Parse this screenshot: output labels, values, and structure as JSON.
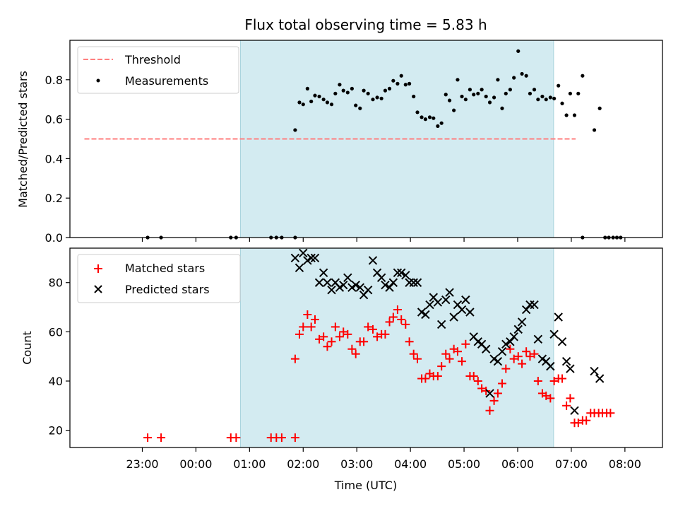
{
  "title": "Flux total observing time = 5.83 h",
  "colors": {
    "threshold": "#ff7f7f",
    "measurement": "#000000",
    "matched": "#ff0000",
    "predicted": "#000000",
    "span_fill": "#d3ebf1",
    "span_edge": "#a8d3dd"
  },
  "chart_data": [
    {
      "type": "scatter",
      "ylabel": "Matched/Predicted stars",
      "xlabel": "",
      "ylim": [
        0,
        1.0
      ],
      "yticks": [
        0.0,
        0.2,
        0.4,
        0.6,
        0.8
      ],
      "ytick_labels": [
        "0.0",
        "0.2",
        "0.4",
        "0.6",
        "0.8"
      ],
      "legend": {
        "placement": "upper-left",
        "threshold_label": "Threshold",
        "measurements_label": "Measurements"
      },
      "threshold": {
        "y": 0.5,
        "x_start": -0.08,
        "x_end": 9.08
      },
      "highlight_span": [
        2.83,
        8.67
      ],
      "x_axis": "hours after 22:00 UTC",
      "measurements": [
        [
          1.1,
          0.0
        ],
        [
          1.35,
          0.0
        ],
        [
          2.65,
          0.0
        ],
        [
          2.75,
          0.0
        ],
        [
          3.4,
          0.0
        ],
        [
          3.5,
          0.0
        ],
        [
          3.6,
          0.0
        ],
        [
          3.85,
          0.0
        ],
        [
          3.85,
          0.545
        ],
        [
          3.93,
          0.685
        ],
        [
          4.0,
          0.675
        ],
        [
          4.08,
          0.755
        ],
        [
          4.15,
          0.69
        ],
        [
          4.22,
          0.72
        ],
        [
          4.3,
          0.715
        ],
        [
          4.38,
          0.7
        ],
        [
          4.45,
          0.685
        ],
        [
          4.53,
          0.675
        ],
        [
          4.6,
          0.73
        ],
        [
          4.68,
          0.775
        ],
        [
          4.75,
          0.745
        ],
        [
          4.83,
          0.735
        ],
        [
          4.91,
          0.755
        ],
        [
          4.98,
          0.67
        ],
        [
          5.06,
          0.655
        ],
        [
          5.13,
          0.745
        ],
        [
          5.21,
          0.73
        ],
        [
          5.3,
          0.7
        ],
        [
          5.38,
          0.71
        ],
        [
          5.46,
          0.705
        ],
        [
          5.53,
          0.745
        ],
        [
          5.61,
          0.755
        ],
        [
          5.68,
          0.795
        ],
        [
          5.76,
          0.78
        ],
        [
          5.83,
          0.82
        ],
        [
          5.91,
          0.775
        ],
        [
          5.98,
          0.78
        ],
        [
          6.06,
          0.715
        ],
        [
          6.13,
          0.635
        ],
        [
          6.21,
          0.61
        ],
        [
          6.28,
          0.6
        ],
        [
          6.36,
          0.61
        ],
        [
          6.43,
          0.605
        ],
        [
          6.51,
          0.565
        ],
        [
          6.58,
          0.58
        ],
        [
          6.66,
          0.725
        ],
        [
          6.73,
          0.695
        ],
        [
          6.81,
          0.645
        ],
        [
          6.88,
          0.8
        ],
        [
          6.96,
          0.715
        ],
        [
          7.03,
          0.7
        ],
        [
          7.11,
          0.75
        ],
        [
          7.18,
          0.725
        ],
        [
          7.26,
          0.73
        ],
        [
          7.33,
          0.75
        ],
        [
          7.41,
          0.715
        ],
        [
          7.48,
          0.685
        ],
        [
          7.56,
          0.71
        ],
        [
          7.63,
          0.8
        ],
        [
          7.71,
          0.655
        ],
        [
          7.78,
          0.73
        ],
        [
          7.86,
          0.75
        ],
        [
          7.93,
          0.81
        ],
        [
          8.01,
          0.945
        ],
        [
          8.08,
          0.83
        ],
        [
          8.16,
          0.82
        ],
        [
          8.23,
          0.73
        ],
        [
          8.31,
          0.75
        ],
        [
          8.38,
          0.7
        ],
        [
          8.46,
          0.715
        ],
        [
          8.53,
          0.7
        ],
        [
          8.61,
          0.71
        ],
        [
          8.68,
          0.705
        ],
        [
          8.76,
          0.77
        ],
        [
          8.83,
          0.68
        ],
        [
          8.91,
          0.62
        ],
        [
          8.98,
          0.73
        ],
        [
          9.06,
          0.62
        ],
        [
          9.13,
          0.73
        ],
        [
          9.21,
          0.82
        ],
        [
          9.43,
          0.545
        ],
        [
          9.53,
          0.655
        ],
        [
          9.63,
          0.0
        ],
        [
          9.7,
          0.0
        ],
        [
          9.78,
          0.0
        ],
        [
          9.85,
          0.0
        ],
        [
          9.92,
          0.0
        ],
        [
          9.21,
          0.0
        ]
      ]
    },
    {
      "type": "scatter",
      "ylabel": "Count",
      "xlabel": "Time (UTC)",
      "ylim": [
        13,
        94
      ],
      "yticks": [
        20,
        40,
        60,
        80
      ],
      "ytick_labels": [
        "20",
        "40",
        "60",
        "80"
      ],
      "xticks": [
        1,
        2,
        3,
        4,
        5,
        6,
        7,
        8,
        9,
        10
      ],
      "xtick_labels": [
        "23:00",
        "00:00",
        "01:00",
        "02:00",
        "03:00",
        "04:00",
        "05:00",
        "06:00",
        "07:00",
        "08:00"
      ],
      "xlim": [
        -0.35,
        10.7
      ],
      "legend": {
        "placement": "upper-left",
        "matched_label": "Matched stars",
        "predicted_label": "Predicted stars"
      },
      "matched": [
        [
          1.1,
          17
        ],
        [
          1.35,
          17
        ],
        [
          2.65,
          17
        ],
        [
          2.75,
          17
        ],
        [
          3.4,
          17
        ],
        [
          3.5,
          17
        ],
        [
          3.6,
          17
        ],
        [
          3.85,
          17
        ],
        [
          3.85,
          49
        ],
        [
          3.93,
          59
        ],
        [
          4.0,
          62
        ],
        [
          4.08,
          67
        ],
        [
          4.15,
          62
        ],
        [
          4.22,
          65
        ],
        [
          4.3,
          57
        ],
        [
          4.38,
          58
        ],
        [
          4.45,
          54
        ],
        [
          4.53,
          56
        ],
        [
          4.6,
          62
        ],
        [
          4.68,
          58
        ],
        [
          4.75,
          60
        ],
        [
          4.83,
          59
        ],
        [
          4.91,
          53
        ],
        [
          4.98,
          51
        ],
        [
          5.06,
          56
        ],
        [
          5.13,
          56
        ],
        [
          5.21,
          62
        ],
        [
          5.3,
          61
        ],
        [
          5.38,
          58
        ],
        [
          5.46,
          59
        ],
        [
          5.53,
          59
        ],
        [
          5.61,
          64
        ],
        [
          5.68,
          66
        ],
        [
          5.76,
          69
        ],
        [
          5.83,
          65
        ],
        [
          5.91,
          63
        ],
        [
          5.98,
          56
        ],
        [
          6.06,
          51
        ],
        [
          6.13,
          49
        ],
        [
          6.21,
          41
        ],
        [
          6.28,
          41
        ],
        [
          6.36,
          43
        ],
        [
          6.43,
          42
        ],
        [
          6.51,
          42
        ],
        [
          6.58,
          46
        ],
        [
          6.66,
          51
        ],
        [
          6.73,
          49
        ],
        [
          6.81,
          53
        ],
        [
          6.88,
          52
        ],
        [
          6.96,
          48
        ],
        [
          7.03,
          55
        ],
        [
          7.11,
          42
        ],
        [
          7.18,
          42
        ],
        [
          7.26,
          40
        ],
        [
          7.33,
          37
        ],
        [
          7.41,
          36
        ],
        [
          7.48,
          28
        ],
        [
          7.56,
          32
        ],
        [
          7.63,
          35
        ],
        [
          7.71,
          39
        ],
        [
          7.78,
          45
        ],
        [
          7.86,
          53
        ],
        [
          7.93,
          49
        ],
        [
          8.01,
          50
        ],
        [
          8.08,
          47
        ],
        [
          8.16,
          52
        ],
        [
          8.23,
          50
        ],
        [
          8.31,
          51
        ],
        [
          8.38,
          40
        ],
        [
          8.46,
          35
        ],
        [
          8.53,
          34
        ],
        [
          8.61,
          33
        ],
        [
          8.68,
          40
        ],
        [
          8.76,
          41
        ],
        [
          8.83,
          41
        ],
        [
          8.91,
          30
        ],
        [
          8.98,
          33
        ],
        [
          9.06,
          23
        ],
        [
          9.13,
          23
        ],
        [
          9.21,
          24
        ],
        [
          9.28,
          24
        ],
        [
          9.36,
          27
        ],
        [
          9.43,
          27
        ],
        [
          9.51,
          27
        ],
        [
          9.58,
          27
        ],
        [
          9.66,
          27
        ],
        [
          9.73,
          27
        ]
      ],
      "predicted": [
        [
          3.85,
          90
        ],
        [
          3.93,
          86
        ],
        [
          4.0,
          92
        ],
        [
          4.08,
          89
        ],
        [
          4.15,
          90
        ],
        [
          4.22,
          90
        ],
        [
          4.3,
          80
        ],
        [
          4.38,
          84
        ],
        [
          4.45,
          80
        ],
        [
          4.53,
          77
        ],
        [
          4.6,
          80
        ],
        [
          4.68,
          78
        ],
        [
          4.75,
          79
        ],
        [
          4.83,
          82
        ],
        [
          4.91,
          78
        ],
        [
          4.98,
          79
        ],
        [
          5.06,
          78
        ],
        [
          5.13,
          75
        ],
        [
          5.21,
          77
        ],
        [
          5.3,
          89
        ],
        [
          5.38,
          84
        ],
        [
          5.46,
          82
        ],
        [
          5.53,
          79
        ],
        [
          5.61,
          78
        ],
        [
          5.68,
          80
        ],
        [
          5.76,
          84
        ],
        [
          5.83,
          84
        ],
        [
          5.91,
          83
        ],
        [
          5.98,
          80
        ],
        [
          6.06,
          80
        ],
        [
          6.13,
          80
        ],
        [
          6.21,
          68
        ],
        [
          6.28,
          67
        ],
        [
          6.36,
          71
        ],
        [
          6.43,
          74
        ],
        [
          6.51,
          72
        ],
        [
          6.58,
          63
        ],
        [
          6.66,
          73
        ],
        [
          6.73,
          76
        ],
        [
          6.81,
          66
        ],
        [
          6.88,
          71
        ],
        [
          6.96,
          69
        ],
        [
          7.03,
          73
        ],
        [
          7.11,
          68
        ],
        [
          7.18,
          58
        ],
        [
          7.26,
          56
        ],
        [
          7.33,
          55
        ],
        [
          7.41,
          53
        ],
        [
          7.48,
          35
        ],
        [
          7.56,
          49
        ],
        [
          7.63,
          48
        ],
        [
          7.71,
          52
        ],
        [
          7.78,
          55
        ],
        [
          7.86,
          56
        ],
        [
          7.93,
          58
        ],
        [
          8.01,
          61
        ],
        [
          8.08,
          64
        ],
        [
          8.16,
          69
        ],
        [
          8.23,
          71
        ],
        [
          8.31,
          71
        ],
        [
          8.38,
          57
        ],
        [
          8.46,
          49
        ],
        [
          8.53,
          48
        ],
        [
          8.61,
          46
        ],
        [
          8.68,
          59
        ],
        [
          8.76,
          66
        ],
        [
          8.83,
          56
        ],
        [
          8.91,
          48
        ],
        [
          8.98,
          45
        ],
        [
          9.06,
          28
        ],
        [
          9.43,
          44
        ],
        [
          9.53,
          41
        ]
      ]
    }
  ]
}
